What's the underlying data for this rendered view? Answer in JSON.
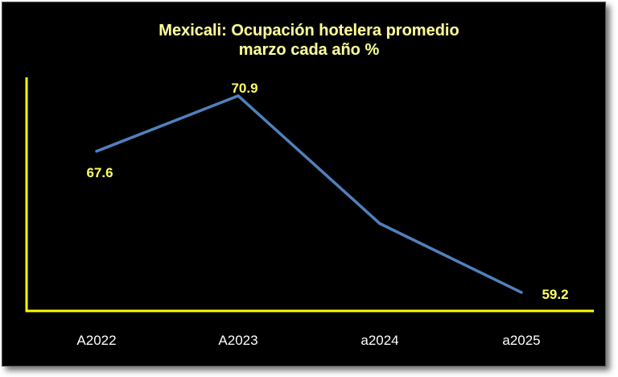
{
  "chart_data": {
    "type": "line",
    "title": "Mexicali: Ocupación hotelera promedio",
    "subtitle": "marzo cada año %",
    "categories": [
      "A2022",
      "A2023",
      "a2024",
      "a2025"
    ],
    "series": [
      {
        "values": [
          67.6,
          70.9,
          63.3,
          59.2
        ],
        "data_labels": [
          "67.6",
          "70.9",
          "",
          "59.2"
        ],
        "color": "#4f81bd"
      }
    ],
    "ylim": [
      58.1,
      72.0
    ],
    "grid": false,
    "legend": "none",
    "axis_color": "#ffff00",
    "background": "#000000",
    "title_color": "#ffff99"
  }
}
